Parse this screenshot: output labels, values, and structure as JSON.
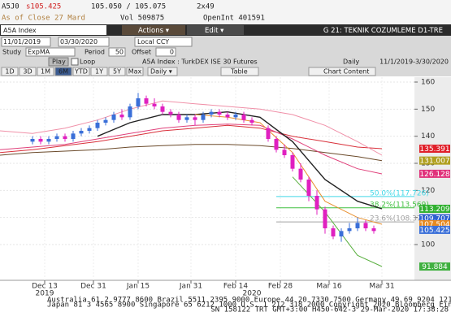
{
  "quote": {
    "ticker": "A5J0",
    "last": "s105.425",
    "bid_ask": "105.050 / 105.075",
    "size": "2x49",
    "as_of": "As of Close 27 Mard",
    "volume": "Vol 509875",
    "open_interest": "OpenInt 401591"
  },
  "toolbar": {
    "security": "A5A Index",
    "actions": "Actions ▾",
    "edit": "Edit ▾",
    "page_title": "G 21: TEKNIK COZUMLEME D1-TRE",
    "start_date": "11/01/2019",
    "end_date": "03/30/2020",
    "currency": "Local CCY",
    "study_label": "Study",
    "study": "ExpMA",
    "period_label": "Period",
    "period": "50",
    "offset_label": "Offset",
    "offset": "0",
    "play": "Play",
    "loop": "Loop",
    "description": "A5A Index : TurkDEX ISE 30 Futures",
    "frequency": "Daily",
    "range": "11/1/2019-3/30/2020",
    "periods": [
      "1D",
      "3D",
      "1M",
      "6M",
      "YTD",
      "1Y",
      "5Y",
      "Max"
    ],
    "period_select": "Daily ▾",
    "table": "Table",
    "chart_content": "Chart Content"
  },
  "chart": {
    "type": "candlestick",
    "xlim": [
      0,
      102
    ],
    "ylim": [
      86.8,
      161.8
    ],
    "yticks": [
      100,
      110,
      120,
      130,
      140,
      150,
      160
    ],
    "xticks": [
      {
        "value": 11,
        "label": "Dec 13"
      },
      {
        "value": 23,
        "label": "Dec 31"
      },
      {
        "value": 34,
        "label": "Jan 15"
      },
      {
        "value": 47,
        "label": "Jan 31"
      },
      {
        "value": 58,
        "label": "Feb 14"
      },
      {
        "value": 69,
        "label": "Feb 28"
      },
      {
        "value": 81,
        "label": "Mar 16"
      },
      {
        "value": 94,
        "label": "Mar 31"
      }
    ],
    "year_labels": [
      {
        "value": 11,
        "label": "2019"
      },
      {
        "value": 62,
        "label": "2020"
      }
    ],
    "up_color": "#3a6fd8",
    "down_color": "#e020c0",
    "candles": {
      "x": [
        8,
        10,
        12,
        14,
        16,
        18,
        20,
        22,
        24,
        26,
        28,
        30,
        32,
        34,
        36,
        38,
        40,
        42,
        44,
        46,
        48,
        50,
        52,
        54,
        56,
        58,
        60,
        62,
        66,
        68,
        70,
        72,
        74,
        76,
        78,
        80,
        82,
        84,
        86,
        88,
        90,
        92
      ],
      "open": [
        138,
        139,
        138,
        139,
        140,
        139,
        141,
        142,
        143,
        145,
        146,
        148,
        147,
        151,
        154,
        152,
        151,
        149,
        148,
        146,
        147,
        146,
        148,
        149,
        148,
        147,
        148,
        146,
        143,
        139,
        135,
        133,
        128,
        124,
        118,
        113,
        106,
        103,
        105,
        106,
        108,
        106
      ],
      "close": [
        139,
        138,
        139,
        140,
        139,
        141,
        142,
        143,
        145,
        146,
        148,
        147,
        151,
        154,
        152,
        151,
        149,
        148,
        146,
        147,
        146,
        148,
        149,
        148,
        147,
        148,
        146,
        145,
        139,
        135,
        133,
        128,
        124,
        118,
        113,
        106,
        103,
        105,
        106,
        108,
        106,
        105
      ],
      "high": [
        140,
        140,
        140,
        141,
        141,
        142,
        143,
        144,
        146,
        147,
        149,
        150,
        152,
        156,
        155,
        154,
        152,
        150,
        149,
        148,
        148,
        149,
        150,
        150,
        149,
        149,
        149,
        147,
        144,
        140,
        137,
        134,
        130,
        125,
        120,
        114,
        107,
        106,
        108,
        110,
        109,
        107
      ],
      "low": [
        137,
        137,
        137,
        138,
        138,
        138,
        140,
        141,
        142,
        144,
        145,
        146,
        146,
        150,
        151,
        150,
        148,
        147,
        145,
        145,
        144,
        145,
        147,
        147,
        146,
        146,
        145,
        144,
        138,
        134,
        132,
        127,
        123,
        116,
        111,
        104,
        102,
        101,
        104,
        105,
        105,
        104
      ]
    },
    "line_x": [
      0,
      8,
      16,
      24,
      32,
      40,
      48,
      56,
      64,
      72,
      80,
      88,
      94
    ],
    "series": [
      {
        "color": "#6b4a2a",
        "values": [
          133,
          134,
          134.5,
          135,
          136,
          136.5,
          137,
          137,
          136.5,
          135.5,
          134,
          132.5,
          131.0
        ]
      },
      {
        "color": "#d9303a",
        "values": [
          134,
          135,
          136.5,
          138,
          140,
          142,
          143,
          144,
          143,
          140,
          138,
          136,
          135.4
        ]
      },
      {
        "color": "#f090a8",
        "values": [
          142,
          141,
          143,
          146,
          150,
          153,
          152,
          151,
          150,
          148,
          144,
          138,
          133
        ]
      },
      {
        "color": "#e0407a",
        "values": [
          135,
          136,
          137,
          139,
          141,
          143,
          144,
          144.5,
          144,
          139,
          133,
          128,
          126.1
        ]
      },
      {
        "color": "#222222",
        "values": [
          null,
          null,
          null,
          140,
          145,
          148,
          148,
          149,
          147,
          138,
          124,
          116,
          113.2
        ]
      },
      {
        "color": "#e89030",
        "values": [
          null,
          null,
          null,
          null,
          null,
          null,
          148,
          147,
          145,
          134,
          116,
          110,
          107.5
        ]
      },
      {
        "color": "#5ab040",
        "values": [
          null,
          null,
          null,
          null,
          null,
          null,
          null,
          null,
          null,
          125,
          112,
          96,
          91.9
        ]
      }
    ],
    "fib_levels": [
      {
        "label": "50.0%(117.726)",
        "value": 117.726,
        "color": "#40d8e8"
      },
      {
        "label": "38.2%(113.569)",
        "value": 113.569,
        "color": "#40c040"
      },
      {
        "label": "23.6%(108.379)",
        "value": 108.379,
        "color": "#a0a0a0"
      }
    ],
    "price_tags": [
      {
        "value": 135.391,
        "color": "#e0202a"
      },
      {
        "value": 131.007,
        "color": "#b0a020"
      },
      {
        "value": 126.128,
        "color": "#e0307a"
      },
      {
        "value": 113.209,
        "color": "#30b030"
      },
      {
        "value": 109.707,
        "color": "#3060d0"
      },
      {
        "value": 107.504,
        "color": "#e88a20"
      },
      {
        "value": 105.425,
        "color": "#3a6fd8"
      },
      {
        "value": 91.884,
        "color": "#40b040"
      }
    ]
  },
  "footer": [
    "Australia 61 2 9777 8600 Brazil 5511 2395 9000 Europe 44 20 7330 7500 Germany 49 69 9204 1210 Hong Kong 852 2977 6000",
    "Japan 81 3 4565 8900     Singapore 65 6212 1000     U.S. 1 212 318 2000     Copyright 2020 Bloomberg Finance L.P.",
    "SN 158122 TRT  GMT+3:00 H450-642-3 29-Mar-2020 17:38:28"
  ]
}
